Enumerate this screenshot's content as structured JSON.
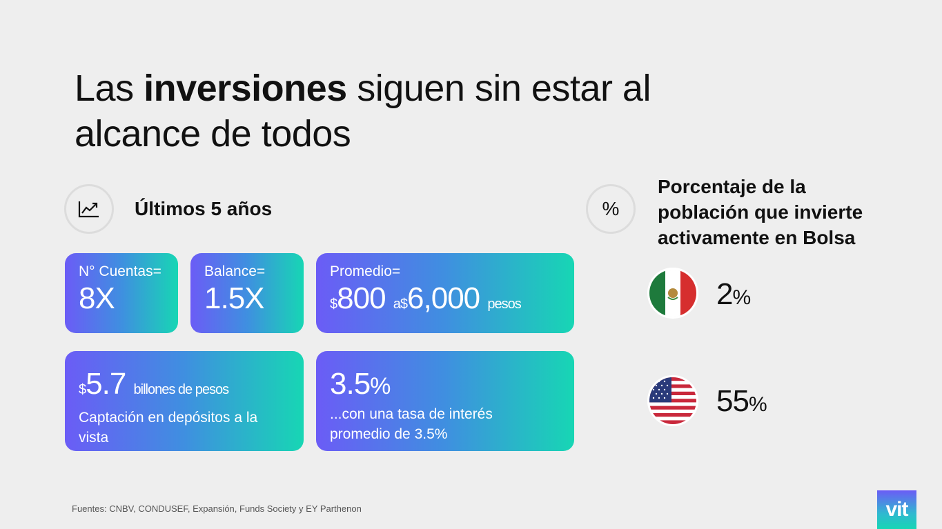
{
  "title": {
    "prefix": "Las ",
    "bold": "inversiones",
    "suffix": " siguen sin estar al alcance de todos"
  },
  "left_section": {
    "icon": "chart-line-icon",
    "label": "Últimos 5 años"
  },
  "right_section": {
    "icon": "percent-icon",
    "icon_glyph": "%",
    "label": "Porcentaje de la población que invierte activamente en Bolsa"
  },
  "cards": {
    "cuentas": {
      "label": "N° Cuentas=",
      "value": "8X"
    },
    "balance": {
      "label": "Balance=",
      "value": "1.5X"
    },
    "promedio": {
      "label": "Promedio=",
      "currency1": "$",
      "value1": "800",
      "connector": "a",
      "currency2": "$",
      "value2": "6,000",
      "unit": "pesos"
    },
    "billones": {
      "currency": "$",
      "value": "5.7",
      "unit": "billones de pesos",
      "text": "Captación en depósitos a la vista"
    },
    "tasa": {
      "value": "3.5",
      "sign": "%",
      "text": "...con una tasa de interés promedio de 3.5%"
    }
  },
  "countries": {
    "mexico": {
      "flag": "mexico-flag",
      "value": "2",
      "sign": "%"
    },
    "usa": {
      "flag": "usa-flag",
      "value": "55",
      "sign": "%"
    }
  },
  "sources": "Fuentes: CNBV, CONDUSEF, Expansión, Funds Society y EY Parthenon",
  "logo": "vit",
  "colors": {
    "background": "#eeeeee",
    "gradient_start": "#6b5cf6",
    "gradient_end": "#17d6b4"
  }
}
